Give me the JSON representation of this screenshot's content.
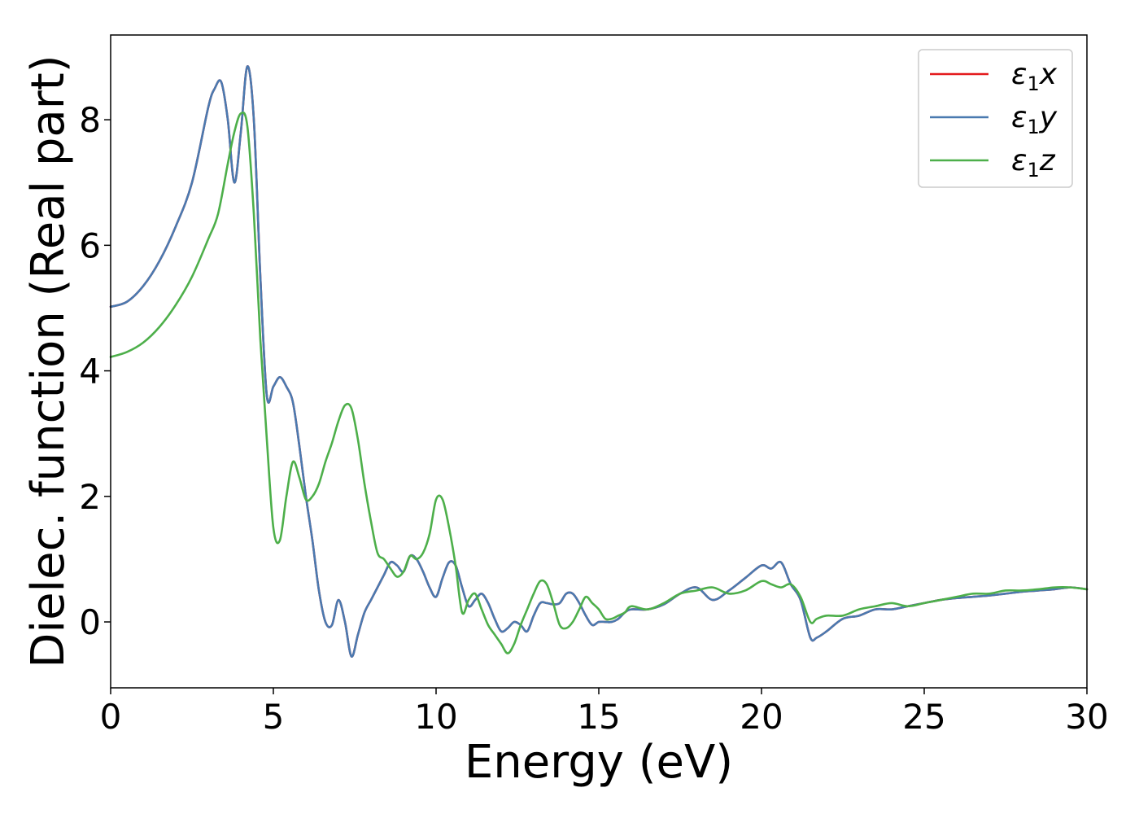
{
  "chart_data": {
    "type": "line",
    "title": "",
    "xlabel": "Energy (eV)",
    "ylabel": "Dielec. function (Real part)",
    "xlim": [
      0,
      30
    ],
    "ylim": [
      -1.05,
      9.35
    ],
    "x_ticks": [
      0,
      5,
      10,
      15,
      20,
      25,
      30
    ],
    "y_ticks": [
      0,
      2,
      4,
      6,
      8
    ],
    "grid": false,
    "legend_position": "top-right",
    "series": [
      {
        "name": "ε1x",
        "legend": {
          "symbol": "ε",
          "sub": "1",
          "suffix": "x"
        },
        "color": "#e41a1c",
        "x": [
          0,
          0.5,
          1,
          1.5,
          2,
          2.5,
          3,
          3.2,
          3.4,
          3.6,
          3.8,
          4.0,
          4.2,
          4.4,
          4.6,
          4.8,
          5.0,
          5.2,
          5.4,
          5.6,
          5.8,
          6.0,
          6.2,
          6.4,
          6.6,
          6.8,
          7.0,
          7.2,
          7.4,
          7.6,
          7.8,
          8.0,
          8.2,
          8.4,
          8.6,
          8.8,
          9.0,
          9.2,
          9.4,
          9.6,
          9.8,
          10.0,
          10.2,
          10.4,
          10.6,
          10.8,
          11.0,
          11.2,
          11.4,
          11.6,
          11.8,
          12.0,
          12.2,
          12.4,
          12.6,
          12.8,
          13.0,
          13.2,
          13.4,
          13.6,
          13.8,
          14.0,
          14.2,
          14.4,
          14.6,
          14.8,
          15.0,
          15.2,
          15.4,
          15.6,
          15.8,
          16.0,
          16.5,
          17.0,
          17.5,
          18.0,
          18.5,
          19.0,
          19.5,
          20.0,
          20.3,
          20.6,
          20.9,
          21.2,
          21.5,
          21.7,
          22.0,
          22.5,
          23.0,
          23.5,
          24.0,
          24.5,
          25.0,
          25.5,
          26.0,
          26.5,
          27.0,
          27.5,
          28.0,
          28.5,
          29.0,
          29.5,
          30.0
        ],
        "y": [
          5.02,
          5.1,
          5.35,
          5.75,
          6.3,
          7.0,
          8.2,
          8.5,
          8.6,
          8.0,
          7.0,
          7.8,
          8.85,
          8.0,
          5.5,
          3.6,
          3.75,
          3.9,
          3.75,
          3.5,
          2.8,
          2.0,
          1.3,
          0.5,
          0.0,
          -0.05,
          0.35,
          0.0,
          -0.55,
          -0.2,
          0.15,
          0.35,
          0.55,
          0.75,
          0.95,
          0.9,
          0.8,
          1.05,
          1.0,
          0.8,
          0.55,
          0.4,
          0.7,
          0.95,
          0.9,
          0.55,
          0.25,
          0.35,
          0.45,
          0.3,
          0.05,
          -0.15,
          -0.1,
          0.0,
          -0.05,
          -0.15,
          0.1,
          0.3,
          0.3,
          0.28,
          0.3,
          0.45,
          0.45,
          0.3,
          0.1,
          -0.05,
          0.0,
          0.0,
          0.0,
          0.05,
          0.15,
          0.2,
          0.2,
          0.28,
          0.45,
          0.55,
          0.35,
          0.5,
          0.7,
          0.9,
          0.85,
          0.95,
          0.6,
          0.35,
          -0.25,
          -0.25,
          -0.15,
          0.05,
          0.1,
          0.2,
          0.2,
          0.25,
          0.3,
          0.35,
          0.38,
          0.4,
          0.42,
          0.45,
          0.48,
          0.5,
          0.52,
          0.55,
          0.52
        ]
      },
      {
        "name": "ε1y",
        "legend": {
          "symbol": "ε",
          "sub": "1",
          "suffix": "y"
        },
        "color": "#4a7ab0",
        "x": [
          0,
          0.5,
          1,
          1.5,
          2,
          2.5,
          3,
          3.2,
          3.4,
          3.6,
          3.8,
          4.0,
          4.2,
          4.4,
          4.6,
          4.8,
          5.0,
          5.2,
          5.4,
          5.6,
          5.8,
          6.0,
          6.2,
          6.4,
          6.6,
          6.8,
          7.0,
          7.2,
          7.4,
          7.6,
          7.8,
          8.0,
          8.2,
          8.4,
          8.6,
          8.8,
          9.0,
          9.2,
          9.4,
          9.6,
          9.8,
          10.0,
          10.2,
          10.4,
          10.6,
          10.8,
          11.0,
          11.2,
          11.4,
          11.6,
          11.8,
          12.0,
          12.2,
          12.4,
          12.6,
          12.8,
          13.0,
          13.2,
          13.4,
          13.6,
          13.8,
          14.0,
          14.2,
          14.4,
          14.6,
          14.8,
          15.0,
          15.2,
          15.4,
          15.6,
          15.8,
          16.0,
          16.5,
          17.0,
          17.5,
          18.0,
          18.5,
          19.0,
          19.5,
          20.0,
          20.3,
          20.6,
          20.9,
          21.2,
          21.5,
          21.7,
          22.0,
          22.5,
          23.0,
          23.5,
          24.0,
          24.5,
          25.0,
          25.5,
          26.0,
          26.5,
          27.0,
          27.5,
          28.0,
          28.5,
          29.0,
          29.5,
          30.0
        ],
        "y": [
          5.02,
          5.1,
          5.35,
          5.75,
          6.3,
          7.0,
          8.2,
          8.5,
          8.6,
          8.0,
          7.0,
          7.8,
          8.85,
          8.0,
          5.5,
          3.6,
          3.75,
          3.9,
          3.75,
          3.5,
          2.8,
          2.0,
          1.3,
          0.5,
          0.0,
          -0.05,
          0.35,
          0.0,
          -0.55,
          -0.2,
          0.15,
          0.35,
          0.55,
          0.75,
          0.95,
          0.9,
          0.8,
          1.05,
          1.0,
          0.8,
          0.55,
          0.4,
          0.7,
          0.95,
          0.9,
          0.55,
          0.25,
          0.35,
          0.45,
          0.3,
          0.05,
          -0.15,
          -0.1,
          0.0,
          -0.05,
          -0.15,
          0.1,
          0.3,
          0.3,
          0.28,
          0.3,
          0.45,
          0.45,
          0.3,
          0.1,
          -0.05,
          0.0,
          0.0,
          0.0,
          0.05,
          0.15,
          0.2,
          0.2,
          0.28,
          0.45,
          0.55,
          0.35,
          0.5,
          0.7,
          0.9,
          0.85,
          0.95,
          0.6,
          0.35,
          -0.25,
          -0.25,
          -0.15,
          0.05,
          0.1,
          0.2,
          0.2,
          0.25,
          0.3,
          0.35,
          0.38,
          0.4,
          0.42,
          0.45,
          0.48,
          0.5,
          0.52,
          0.55,
          0.52
        ]
      },
      {
        "name": "ε1z",
        "legend": {
          "symbol": "ε",
          "sub": "1",
          "suffix": "z"
        },
        "color": "#4daf4a",
        "x": [
          0,
          0.5,
          1,
          1.5,
          2,
          2.5,
          3,
          3.3,
          3.6,
          3.8,
          4.0,
          4.2,
          4.4,
          4.6,
          4.8,
          5.0,
          5.2,
          5.4,
          5.6,
          5.8,
          6.0,
          6.2,
          6.4,
          6.6,
          6.8,
          7.0,
          7.2,
          7.4,
          7.6,
          7.8,
          8.0,
          8.2,
          8.4,
          8.6,
          8.8,
          9.0,
          9.2,
          9.4,
          9.6,
          9.8,
          10.0,
          10.2,
          10.4,
          10.6,
          10.8,
          11.0,
          11.2,
          11.4,
          11.6,
          11.8,
          12.0,
          12.2,
          12.4,
          12.6,
          12.8,
          13.0,
          13.2,
          13.4,
          13.6,
          13.8,
          14.0,
          14.2,
          14.4,
          14.6,
          14.8,
          15.0,
          15.2,
          15.4,
          15.6,
          15.8,
          16.0,
          16.5,
          17.0,
          17.5,
          18.0,
          18.5,
          19.0,
          19.5,
          20.0,
          20.3,
          20.6,
          20.9,
          21.2,
          21.5,
          21.7,
          22.0,
          22.5,
          23.0,
          23.5,
          24.0,
          24.5,
          25.0,
          25.5,
          26.0,
          26.5,
          27.0,
          27.5,
          28.0,
          28.5,
          29.0,
          29.5,
          30.0
        ],
        "y": [
          4.22,
          4.3,
          4.45,
          4.7,
          5.05,
          5.5,
          6.1,
          6.5,
          7.3,
          7.8,
          8.1,
          7.9,
          6.5,
          4.5,
          2.9,
          1.5,
          1.3,
          2.0,
          2.55,
          2.3,
          1.95,
          2.0,
          2.2,
          2.55,
          2.85,
          3.2,
          3.45,
          3.4,
          2.9,
          2.2,
          1.6,
          1.1,
          1.0,
          0.85,
          0.72,
          0.8,
          1.05,
          1.0,
          1.1,
          1.4,
          1.95,
          1.95,
          1.5,
          0.9,
          0.15,
          0.35,
          0.45,
          0.2,
          -0.05,
          -0.2,
          -0.35,
          -0.5,
          -0.35,
          -0.05,
          0.2,
          0.45,
          0.65,
          0.6,
          0.3,
          -0.05,
          -0.1,
          0.0,
          0.2,
          0.4,
          0.3,
          0.2,
          0.05,
          0.05,
          0.1,
          0.15,
          0.25,
          0.2,
          0.3,
          0.45,
          0.5,
          0.55,
          0.45,
          0.5,
          0.65,
          0.6,
          0.55,
          0.6,
          0.4,
          0.0,
          0.05,
          0.1,
          0.1,
          0.2,
          0.25,
          0.3,
          0.25,
          0.3,
          0.35,
          0.4,
          0.45,
          0.45,
          0.5,
          0.5,
          0.52,
          0.55,
          0.55,
          0.52
        ]
      }
    ]
  }
}
